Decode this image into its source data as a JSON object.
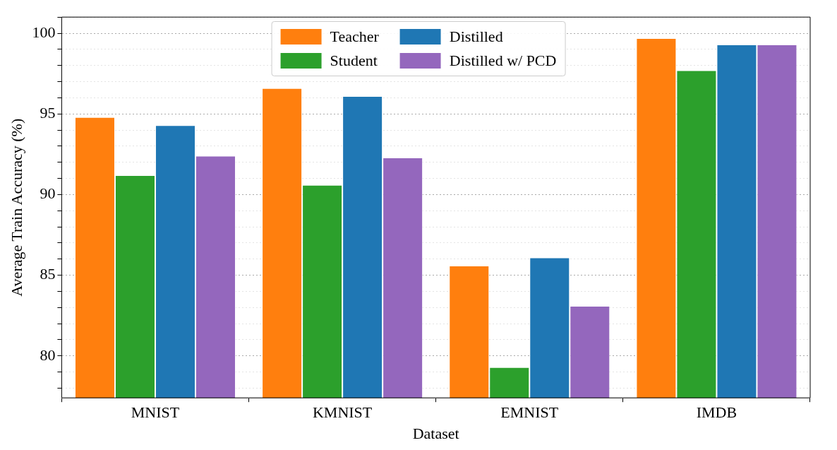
{
  "chart_data": {
    "type": "bar",
    "xlabel": "Dataset",
    "ylabel": "Average Train Accuracy (%)",
    "categories": [
      "MNIST",
      "KMNIST",
      "EMNIST",
      "IMDB"
    ],
    "series": [
      {
        "name": "Teacher",
        "color": "#ff7f0e",
        "values": [
          94.8,
          96.6,
          85.6,
          99.7
        ]
      },
      {
        "name": "Student",
        "color": "#2ca02c",
        "values": [
          91.2,
          90.6,
          79.3,
          97.7
        ]
      },
      {
        "name": "Distilled",
        "color": "#1f77b4",
        "values": [
          94.3,
          96.1,
          86.1,
          99.3
        ]
      },
      {
        "name": "Distilled w/ PCD",
        "color": "#9467bd",
        "values": [
          92.4,
          92.3,
          83.1,
          99.3
        ]
      }
    ],
    "ylim": [
      77.4,
      101
    ],
    "yticks": [
      {
        "value": 78,
        "label": null
      },
      {
        "value": 79,
        "label": null
      },
      80,
      {
        "value": 81,
        "label": null
      },
      {
        "value": 82,
        "label": null
      },
      {
        "value": 83,
        "label": null
      },
      {
        "value": 84,
        "label": null
      },
      85,
      {
        "value": 86,
        "label": null
      },
      {
        "value": 87,
        "label": null
      },
      {
        "value": 88,
        "label": null
      },
      {
        "value": 89,
        "label": null
      },
      90,
      {
        "value": 91,
        "label": null
      },
      {
        "value": 92,
        "label": null
      },
      {
        "value": 93,
        "label": null
      },
      {
        "value": 94,
        "label": null
      },
      95,
      {
        "value": 96,
        "label": null
      },
      {
        "value": 97,
        "label": null
      },
      {
        "value": 98,
        "label": null
      },
      {
        "value": 99,
        "label": null
      },
      100,
      {
        "value": 101,
        "label": null
      }
    ],
    "grid": "y",
    "legend": "top"
  }
}
